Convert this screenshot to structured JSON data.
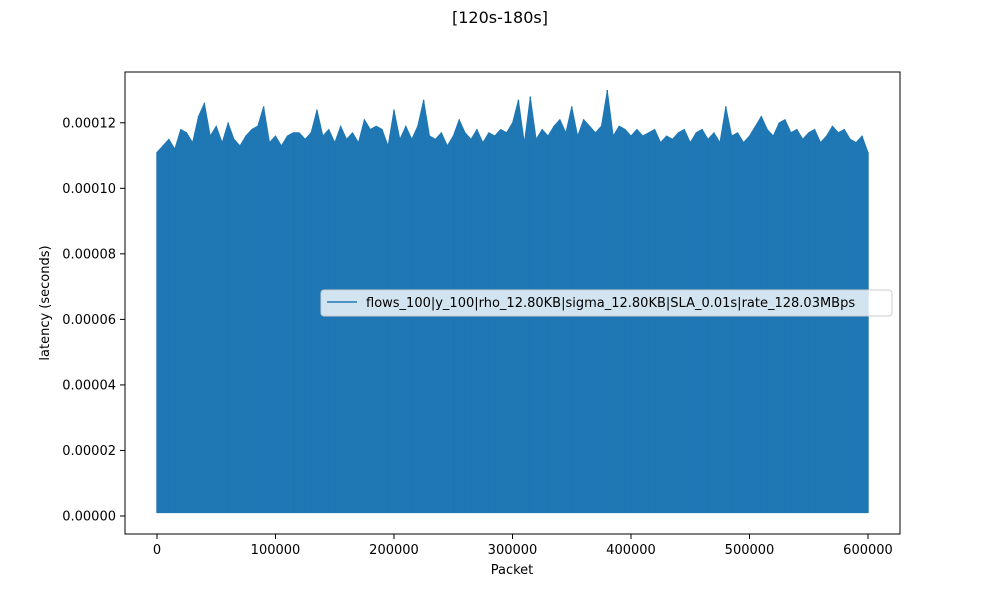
{
  "chart_data": {
    "type": "area",
    "title": "[120s-180s]",
    "xlabel": "Packet",
    "ylabel": "latency (seconds)",
    "xlim": [
      -27000,
      627000
    ],
    "ylim": [
      -5.5e-06,
      0.0001355
    ],
    "x_ticks": [
      0,
      100000,
      200000,
      300000,
      400000,
      500000,
      600000
    ],
    "x_tick_labels": [
      "0",
      "100000",
      "200000",
      "300000",
      "400000",
      "500000",
      "600000"
    ],
    "y_ticks": [
      0.0,
      2e-05,
      4e-05,
      6e-05,
      8e-05,
      0.0001,
      0.00012
    ],
    "y_tick_labels": [
      "0.00000",
      "0.00002",
      "0.00004",
      "0.00006",
      "0.00008",
      "0.00010",
      "0.00012"
    ],
    "grid": false,
    "legend_position": "center-right",
    "series": [
      {
        "name": "flows_100|y_100|rho_12.80KB|sigma_12.80KB|SLA_0.01s|rate_128.03MBps",
        "color": "#1f77b4",
        "x_range": [
          0,
          600000
        ],
        "min_value": 1e-06,
        "envelope_top": [
          [
            0,
            0.000111
          ],
          [
            5000,
            0.000113
          ],
          [
            10000,
            0.000115
          ],
          [
            15000,
            0.000112
          ],
          [
            20000,
            0.000118
          ],
          [
            25000,
            0.000117
          ],
          [
            30000,
            0.000114
          ],
          [
            35000,
            0.000122
          ],
          [
            40000,
            0.000126
          ],
          [
            45000,
            0.000116
          ],
          [
            50000,
            0.000119
          ],
          [
            55000,
            0.000114
          ],
          [
            60000,
            0.00012
          ],
          [
            65000,
            0.000115
          ],
          [
            70000,
            0.000113
          ],
          [
            75000,
            0.000116
          ],
          [
            80000,
            0.000118
          ],
          [
            85000,
            0.000119
          ],
          [
            90000,
            0.000125
          ],
          [
            95000,
            0.000114
          ],
          [
            100000,
            0.000116
          ],
          [
            105000,
            0.000113
          ],
          [
            110000,
            0.000116
          ],
          [
            115000,
            0.000117
          ],
          [
            120000,
            0.000117
          ],
          [
            125000,
            0.000115
          ],
          [
            130000,
            0.000117
          ],
          [
            135000,
            0.000124
          ],
          [
            140000,
            0.000116
          ],
          [
            145000,
            0.000118
          ],
          [
            150000,
            0.000114
          ],
          [
            155000,
            0.000119
          ],
          [
            160000,
            0.000115
          ],
          [
            165000,
            0.000117
          ],
          [
            170000,
            0.000114
          ],
          [
            175000,
            0.000121
          ],
          [
            180000,
            0.000118
          ],
          [
            185000,
            0.000119
          ],
          [
            190000,
            0.000118
          ],
          [
            195000,
            0.000113
          ],
          [
            200000,
            0.000124
          ],
          [
            205000,
            0.000115
          ],
          [
            210000,
            0.000119
          ],
          [
            215000,
            0.000115
          ],
          [
            220000,
            0.000119
          ],
          [
            225000,
            0.000127
          ],
          [
            230000,
            0.000116
          ],
          [
            235000,
            0.000115
          ],
          [
            240000,
            0.000117
          ],
          [
            245000,
            0.000113
          ],
          [
            250000,
            0.000116
          ],
          [
            255000,
            0.000121
          ],
          [
            260000,
            0.000117
          ],
          [
            265000,
            0.000115
          ],
          [
            270000,
            0.000118
          ],
          [
            275000,
            0.000114
          ],
          [
            280000,
            0.000117
          ],
          [
            285000,
            0.000116
          ],
          [
            290000,
            0.000118
          ],
          [
            295000,
            0.000117
          ],
          [
            300000,
            0.00012
          ],
          [
            305000,
            0.000127
          ],
          [
            310000,
            0.000114
          ],
          [
            315000,
            0.000128
          ],
          [
            320000,
            0.000115
          ],
          [
            325000,
            0.000118
          ],
          [
            330000,
            0.000116
          ],
          [
            335000,
            0.000119
          ],
          [
            340000,
            0.000121
          ],
          [
            345000,
            0.000117
          ],
          [
            350000,
            0.000125
          ],
          [
            355000,
            0.000116
          ],
          [
            360000,
            0.000121
          ],
          [
            365000,
            0.000119
          ],
          [
            370000,
            0.000117
          ],
          [
            375000,
            0.000119
          ],
          [
            380000,
            0.00013
          ],
          [
            385000,
            0.000116
          ],
          [
            390000,
            0.000119
          ],
          [
            395000,
            0.000118
          ],
          [
            400000,
            0.000116
          ],
          [
            405000,
            0.000118
          ],
          [
            410000,
            0.000116
          ],
          [
            415000,
            0.000117
          ],
          [
            420000,
            0.000118
          ],
          [
            425000,
            0.000114
          ],
          [
            430000,
            0.000116
          ],
          [
            435000,
            0.000115
          ],
          [
            440000,
            0.000117
          ],
          [
            445000,
            0.000118
          ],
          [
            450000,
            0.000114
          ],
          [
            455000,
            0.000117
          ],
          [
            460000,
            0.000118
          ],
          [
            465000,
            0.000115
          ],
          [
            470000,
            0.000117
          ],
          [
            475000,
            0.000114
          ],
          [
            480000,
            0.000125
          ],
          [
            485000,
            0.000116
          ],
          [
            490000,
            0.000117
          ],
          [
            495000,
            0.000114
          ],
          [
            500000,
            0.000116
          ],
          [
            505000,
            0.000119
          ],
          [
            510000,
            0.000122
          ],
          [
            515000,
            0.000118
          ],
          [
            520000,
            0.000116
          ],
          [
            525000,
            0.00012
          ],
          [
            530000,
            0.000121
          ],
          [
            535000,
            0.000117
          ],
          [
            540000,
            0.000118
          ],
          [
            545000,
            0.000115
          ],
          [
            550000,
            0.000117
          ],
          [
            555000,
            0.000118
          ],
          [
            560000,
            0.000114
          ],
          [
            565000,
            0.000116
          ],
          [
            570000,
            0.000119
          ],
          [
            575000,
            0.000117
          ],
          [
            580000,
            0.000118
          ],
          [
            585000,
            0.000115
          ],
          [
            590000,
            0.000114
          ],
          [
            595000,
            0.000116
          ],
          [
            600000,
            0.000111
          ]
        ]
      }
    ]
  }
}
